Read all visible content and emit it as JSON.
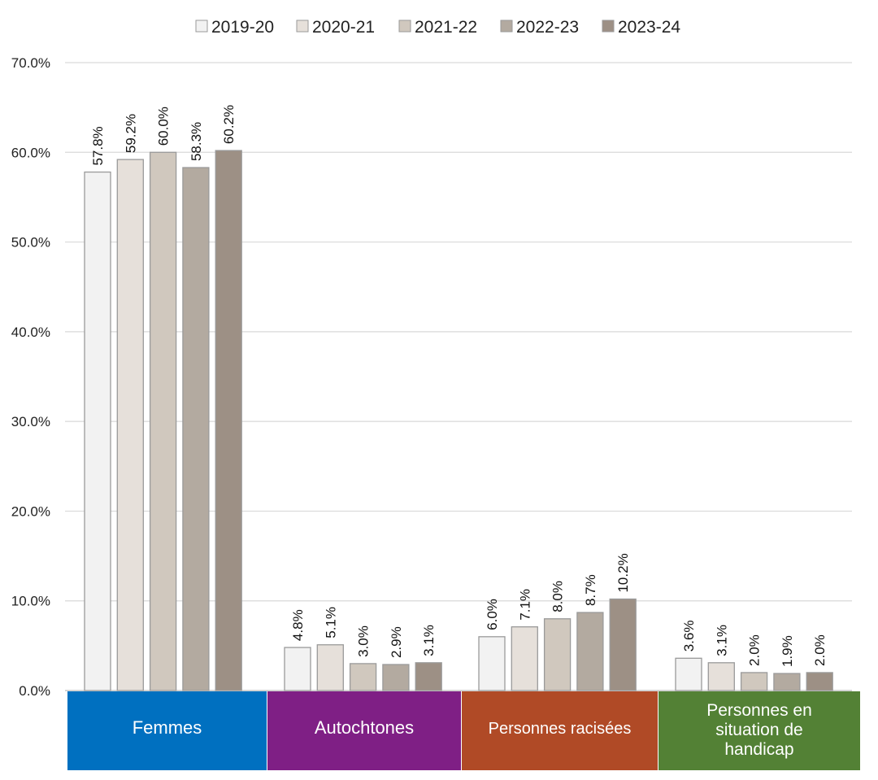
{
  "chart_data": {
    "type": "bar",
    "categories": [
      "Femmes",
      "Autochtones",
      "Personnes racisées",
      "Personnes en situation de handicap"
    ],
    "category_colors": [
      "#0070C0",
      "#7F1F85",
      "#B04A26",
      "#538135"
    ],
    "series": [
      {
        "name": "2019-20",
        "color": "#F2F2F2",
        "values": [
          57.8,
          4.8,
          6.0,
          3.6
        ],
        "labels": [
          "57.8%",
          "4.8%",
          "6.0%",
          "3.6%"
        ]
      },
      {
        "name": "2020-21",
        "color": "#E6E0DA",
        "values": [
          59.2,
          5.1,
          7.1,
          3.1
        ],
        "labels": [
          "59.2%",
          "5.1%",
          "7.1%",
          "3.1%"
        ]
      },
      {
        "name": "2021-22",
        "color": "#D0C8BE",
        "values": [
          60.0,
          3.0,
          8.0,
          2.0
        ],
        "labels": [
          "60.0%",
          "3.0%",
          "8.0%",
          "2.0%"
        ]
      },
      {
        "name": "2022-23",
        "color": "#B3AAA0",
        "values": [
          58.3,
          2.9,
          8.7,
          1.9
        ],
        "labels": [
          "58.3%",
          "2.9%",
          "8.7%",
          "1.9%"
        ]
      },
      {
        "name": "2023-24",
        "color": "#9D9085",
        "values": [
          60.2,
          3.1,
          10.2,
          2.0
        ],
        "labels": [
          "60.2%",
          "3.1%",
          "10.2%",
          "2.0%"
        ]
      }
    ],
    "y_ticks": [
      0,
      10,
      20,
      30,
      40,
      50,
      60,
      70
    ],
    "y_tick_labels": [
      "0.0%",
      "10.0%",
      "20.0%",
      "30.0%",
      "40.0%",
      "50.0%",
      "60.0%",
      "70.0%"
    ],
    "ylim": [
      0,
      70
    ],
    "grid": true,
    "legend_position": "top-center"
  }
}
